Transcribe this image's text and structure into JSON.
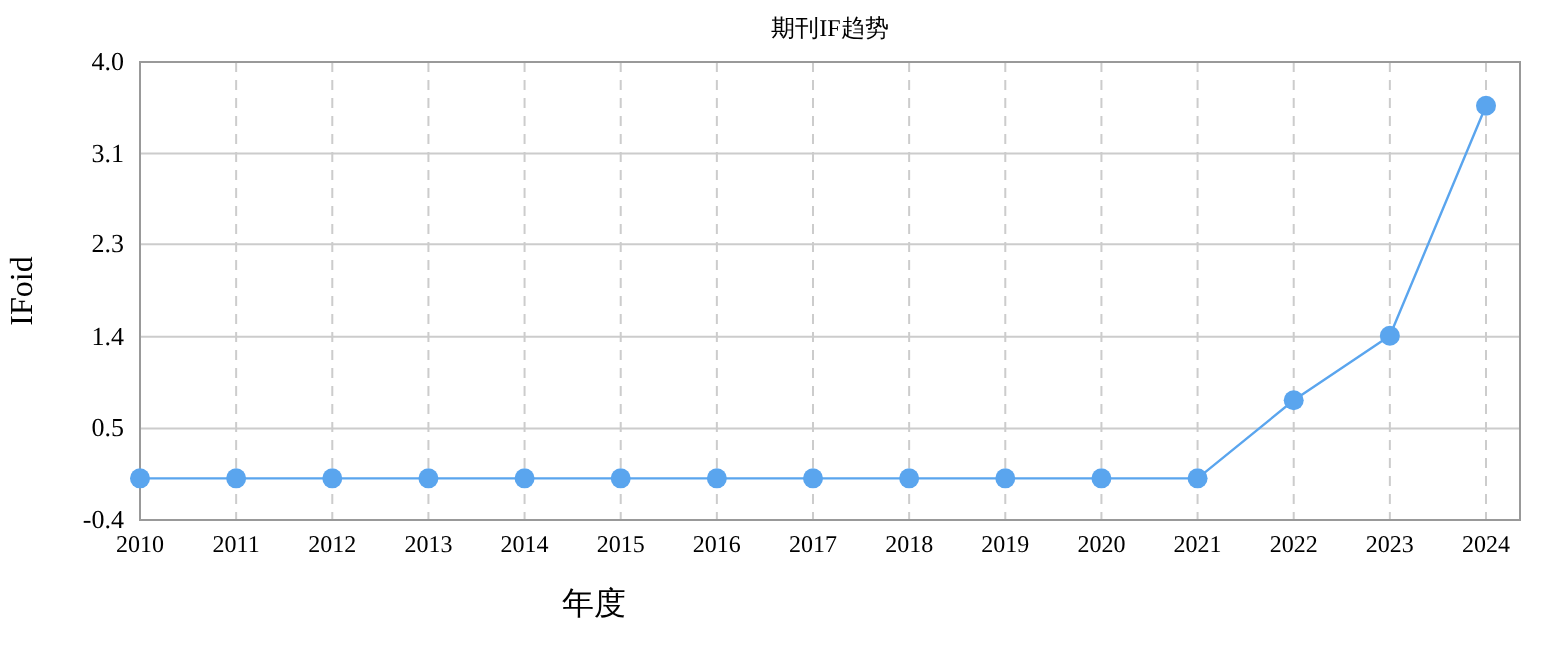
{
  "chart_data": {
    "type": "line",
    "title": "期刊IF趋势",
    "xlabel": "年度",
    "ylabel": "IFoid",
    "categories": [
      "2010",
      "2011",
      "2012",
      "2013",
      "2014",
      "2015",
      "2016",
      "2017",
      "2018",
      "2019",
      "2020",
      "2021",
      "2022",
      "2023",
      "2024"
    ],
    "series": [
      {
        "color": "#5aa5ee",
        "values": [
          0,
          0,
          0,
          0,
          0,
          0,
          0,
          0,
          0,
          0,
          0,
          0,
          0.75,
          1.37,
          3.58
        ]
      }
    ],
    "ylim": [
      -0.4,
      4.0
    ],
    "yticks": [
      -0.4,
      {
        "value": 0.48,
        "label": "0.5"
      },
      {
        "value": 1.36,
        "label": "1.4"
      },
      {
        "value": 2.25,
        "label": "2.3"
      },
      {
        "value": 3.12,
        "label": "3.1"
      },
      {
        "value": 4.0,
        "label": "4.0"
      }
    ],
    "grid": true,
    "marker": "circle",
    "line_style": "solid"
  }
}
